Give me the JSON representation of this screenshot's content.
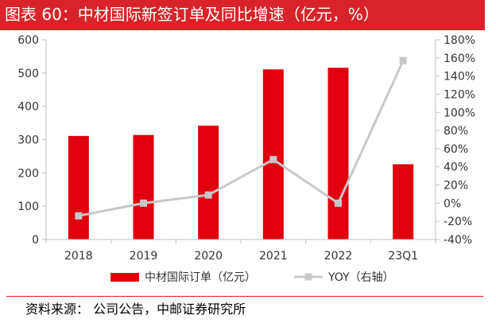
{
  "figure": {
    "title": "图表 60：中材国际新签订单及同比增速（亿元，%）",
    "source": "资料来源：  公司公告，中邮证券研究所"
  },
  "colors": {
    "title_bar": "#d9232a",
    "bar": "#e0000e",
    "line": "#c8c8c8",
    "axis": "#bfbfbf"
  },
  "chart_data": {
    "type": "bar",
    "categories": [
      "2018",
      "2019",
      "2020",
      "2021",
      "2022",
      "23Q1"
    ],
    "series": [
      {
        "name": "中材国际订单（亿元）",
        "type": "bar",
        "axis": "left",
        "values": [
          311,
          314,
          342,
          511,
          516,
          226
        ]
      },
      {
        "name": "YOY（右轴）",
        "type": "line",
        "axis": "right",
        "values": [
          -14,
          0,
          9,
          48,
          0,
          157
        ]
      }
    ],
    "ylim": [
      0,
      600
    ],
    "yticks": [
      "0",
      "100",
      "200",
      "300",
      "400",
      "500",
      "600"
    ],
    "y2lim": [
      -40,
      180
    ],
    "y2ticks": [
      "-40%",
      "-20%",
      "0%",
      "20%",
      "40%",
      "60%",
      "80%",
      "100%",
      "120%",
      "140%",
      "160%",
      "180%"
    ],
    "legend_position": "bottom",
    "grid": false
  }
}
